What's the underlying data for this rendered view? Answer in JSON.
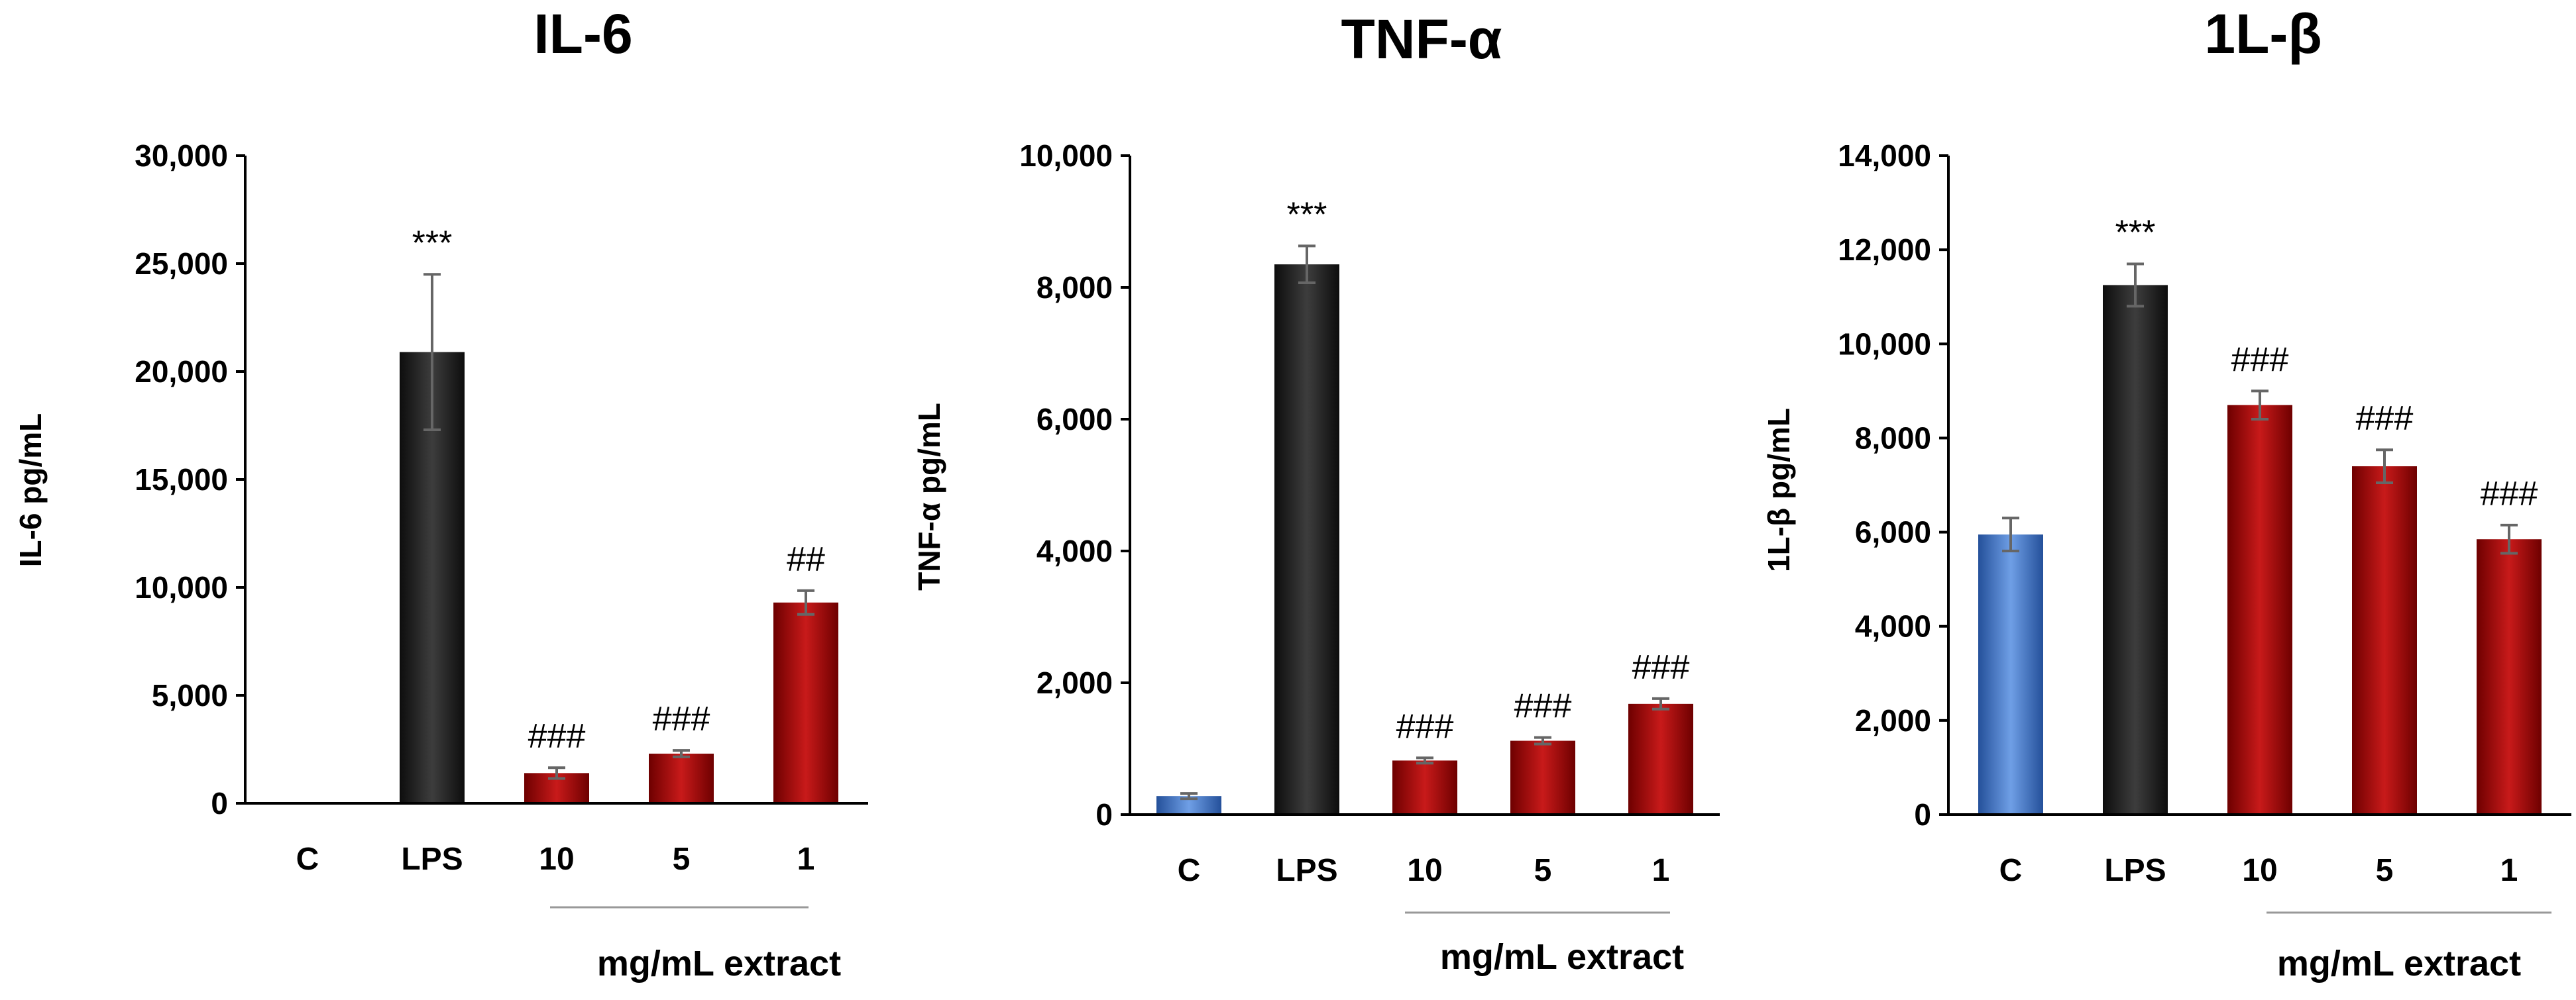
{
  "chart_data": [
    {
      "type": "bar",
      "title": "IL-6",
      "ylabel": "IL-6 pg/mL",
      "xlabel": "mg/mL extract",
      "categories": [
        "C",
        "LPS",
        "10",
        "5",
        "1"
      ],
      "values": [
        0,
        20900,
        1400,
        2300,
        9300
      ],
      "errors": [
        0,
        3600,
        250,
        150,
        550
      ],
      "annotations": [
        "",
        "***",
        "###",
        "###",
        "##"
      ],
      "ylim": [
        0,
        30000
      ],
      "yticks": [
        0,
        5000,
        10000,
        15000,
        20000,
        25000,
        30000
      ],
      "ytick_labels": [
        "0",
        "5,000",
        "10,000",
        "15,000",
        "20,000",
        "25,000",
        "30,000"
      ]
    },
    {
      "type": "bar",
      "title": "TNF-α",
      "ylabel": "TNF-α pg/mL",
      "xlabel": "mg/mL extract",
      "categories": [
        "C",
        "LPS",
        "10",
        "5",
        "1"
      ],
      "values": [
        280,
        8350,
        820,
        1120,
        1680
      ],
      "errors": [
        40,
        280,
        40,
        50,
        80
      ],
      "annotations": [
        "",
        "***",
        "###",
        "###",
        "###"
      ],
      "ylim": [
        0,
        10000
      ],
      "yticks": [
        0,
        2000,
        4000,
        6000,
        8000,
        10000
      ],
      "ytick_labels": [
        "0",
        "2,000",
        "4,000",
        "6,000",
        "8,000",
        "10,000"
      ]
    },
    {
      "type": "bar",
      "title": "1L-β",
      "ylabel": "1L-β pg/mL",
      "xlabel": "mg/mL extract",
      "categories": [
        "C",
        "LPS",
        "10",
        "5",
        "1"
      ],
      "values": [
        5950,
        11250,
        8700,
        7400,
        5850
      ],
      "errors": [
        350,
        450,
        300,
        350,
        300
      ],
      "annotations": [
        "",
        "***",
        "###",
        "###",
        "###"
      ],
      "ylim": [
        0,
        14000
      ],
      "yticks": [
        0,
        2000,
        4000,
        6000,
        8000,
        10000,
        12000,
        14000
      ],
      "ytick_labels": [
        "0",
        "2,000",
        "4,000",
        "6,000",
        "8,000",
        "10,000",
        "12,000",
        "14,000"
      ]
    }
  ],
  "colors": {
    "control": "#4a7fd4",
    "lps": "#262626",
    "extract": "#b81010",
    "error_bar": "#666666",
    "axis": "#000000",
    "xnote_line": "#999999"
  }
}
